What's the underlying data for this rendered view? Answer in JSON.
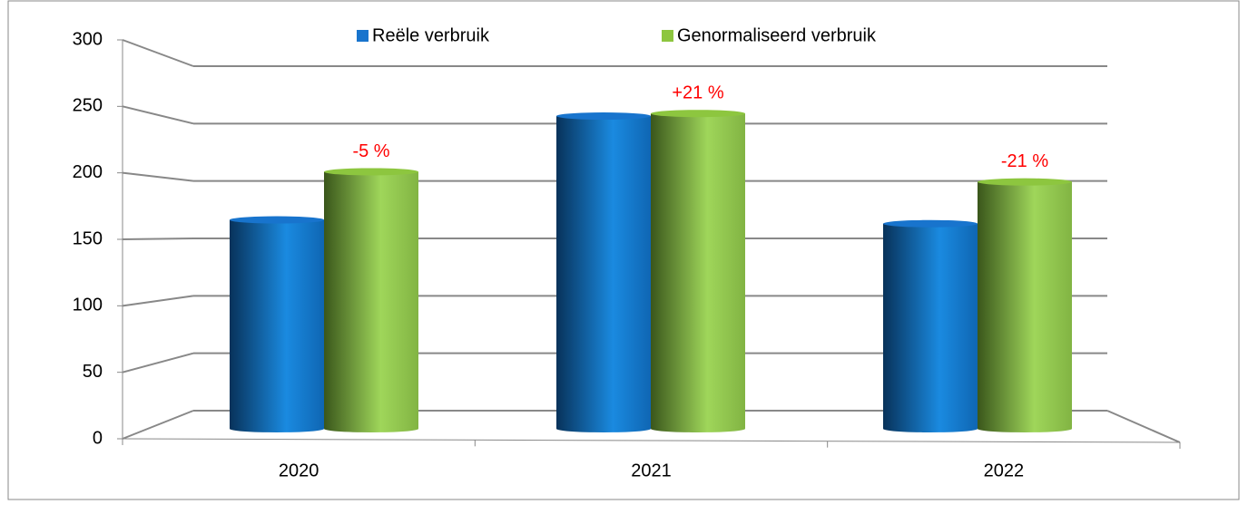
{
  "chart_data": {
    "type": "bar3d",
    "categories": [
      "2020",
      "2021",
      "2022"
    ],
    "series": [
      {
        "name": "Reële verbruik",
        "color": "#1874cd",
        "values": [
          165,
          247,
          162
        ]
      },
      {
        "name": "Genormaliseerd verbruik",
        "color": "#8dc63f",
        "values": [
          203,
          249,
          195
        ]
      }
    ],
    "annotations": [
      "-5 %",
      "+21 %",
      "-21 %"
    ],
    "annotation_color": "#ff0000",
    "ylim": [
      0,
      300
    ],
    "yticks": [
      0,
      50,
      100,
      150,
      200,
      250,
      300
    ],
    "grid": true,
    "legend": "top"
  }
}
